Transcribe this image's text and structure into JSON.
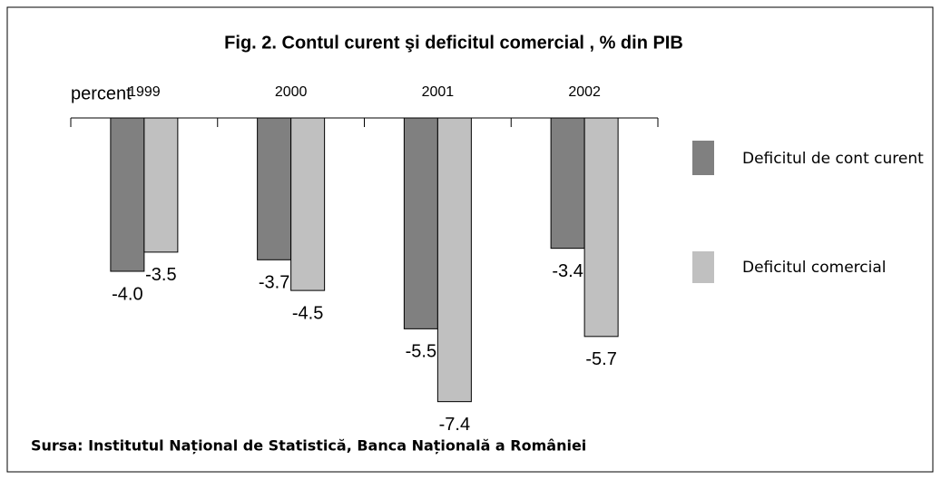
{
  "chart_data": {
    "type": "bar",
    "title": "Fig. 2. Contul curent şi deficitul comercial , % din PIB",
    "y_label": "percent",
    "source": "Sursa: Institutul Național de Statistică, Banca Națională a României",
    "categories": [
      "1999",
      "2000",
      "2001",
      "2002"
    ],
    "series": [
      {
        "name": "Deficitul de cont curent",
        "color": "#808080",
        "values": [
          -4.0,
          -3.7,
          -5.5,
          -3.4
        ],
        "value_labels": [
          "-4.0",
          "-3.7",
          "-5.5",
          "-3.4"
        ]
      },
      {
        "name": "Deficitul comercial",
        "color": "#c0c0c0",
        "values": [
          -3.5,
          -4.5,
          -7.4,
          -5.7
        ],
        "value_labels": [
          "-3.5",
          "-4.5",
          "-7.4",
          "-5.7"
        ]
      }
    ],
    "ylim": [
      -8,
      0
    ],
    "legend": "right"
  }
}
